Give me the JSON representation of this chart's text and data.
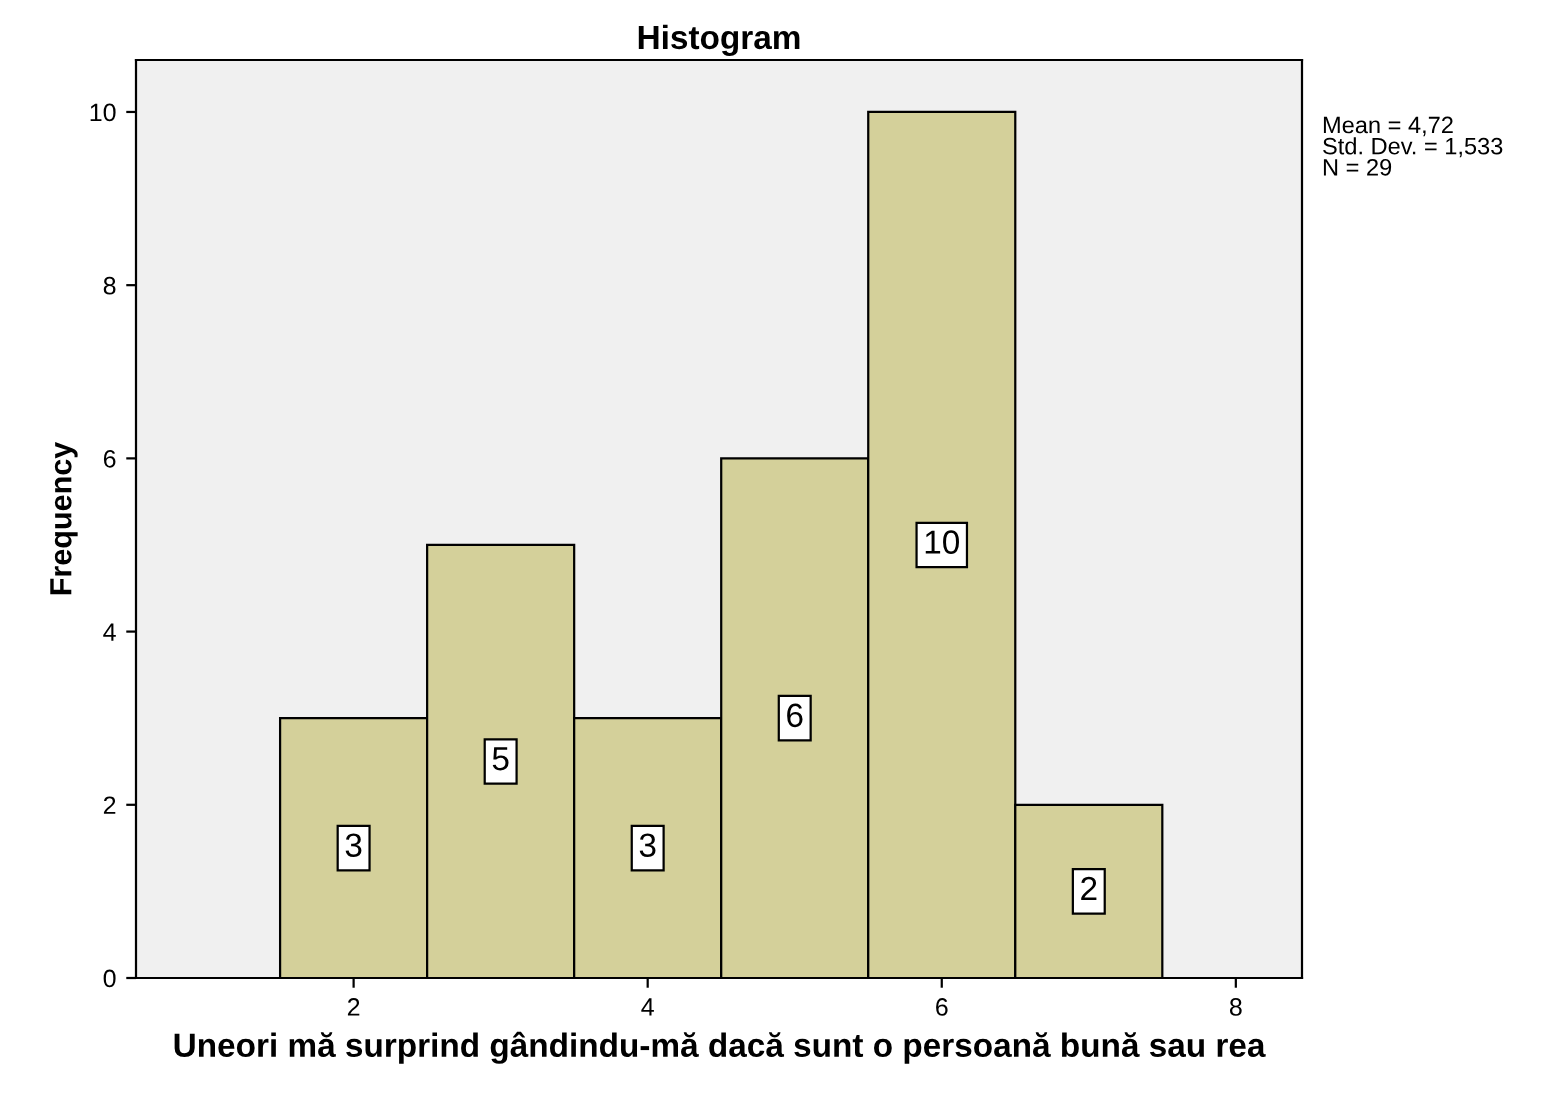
{
  "chart_data": {
    "type": "histogram",
    "title": "Histogram",
    "xlabel": "Uneori mă surprind gândindu-mă dacă sunt o persoană bună sau rea",
    "ylabel": "Frequency",
    "bins": [
      1.5,
      2.5,
      3.5,
      4.5,
      5.5,
      6.5,
      7.5
    ],
    "values": [
      3,
      5,
      3,
      6,
      10,
      2
    ],
    "color": "#d4d09a",
    "data_labels": true,
    "xlim": [
      0.52,
      8.45
    ],
    "xticks": [
      2,
      4,
      6,
      8
    ],
    "ylim": [
      0,
      10.6
    ],
    "yticks": [
      0,
      2,
      4,
      6,
      8,
      10
    ],
    "grid": false,
    "annotations": [
      "Mean = 4,72\nStd. Dev. = 1,533\nN = 29"
    ]
  }
}
